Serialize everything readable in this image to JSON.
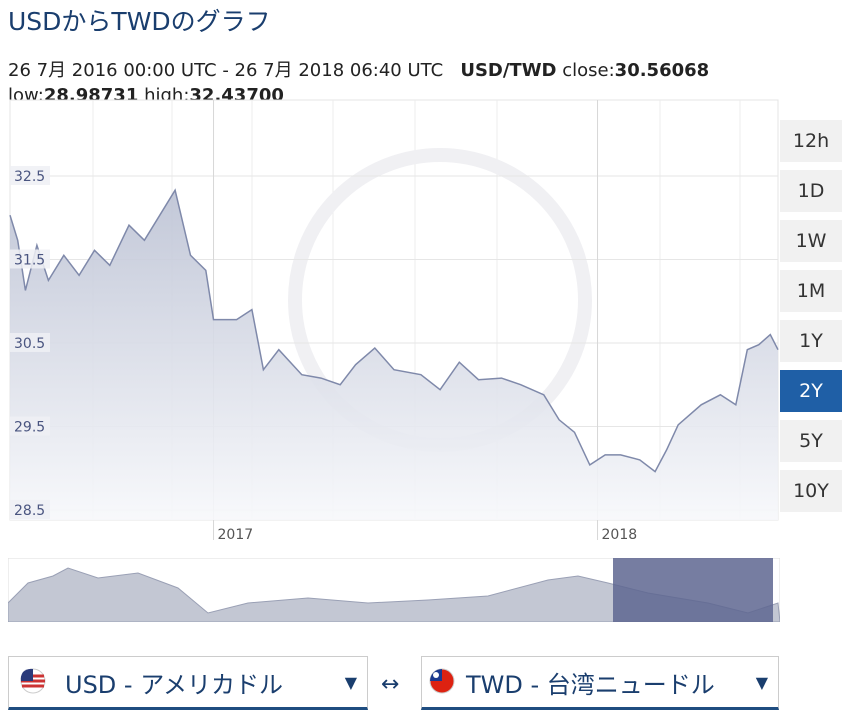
{
  "ui": {
    "title": "USDからTWDのグラフ",
    "range": "26 7月 2016 00:00 UTC - 26 7月 2018 06:40 UTC",
    "pair": "USD/TWD",
    "close_label": "close:",
    "close": "30.56068",
    "low_label": "low:",
    "low": "28.98731",
    "high_label": "high:",
    "high": "32.43700",
    "buttons": [
      "12h",
      "1D",
      "1W",
      "1M",
      "1Y",
      "2Y",
      "5Y",
      "10Y"
    ],
    "active": "2Y",
    "from": "USD - アメリカドル",
    "swap": "↔",
    "to": "TWD - 台湾ニュードル",
    "arrow": "▼"
  },
  "chart_data": {
    "type": "area",
    "color": "#7f89aa",
    "x": [
      2016.47,
      2016.49,
      2016.51,
      2016.54,
      2016.57,
      2016.61,
      2016.65,
      2016.69,
      2016.73,
      2016.78,
      2016.82,
      2016.86,
      2016.9,
      2016.94,
      2016.98,
      2017.0,
      2017.06,
      2017.1,
      2017.13,
      2017.17,
      2017.23,
      2017.28,
      2017.33,
      2017.37,
      2017.42,
      2017.47,
      2017.54,
      2017.59,
      2017.64,
      2017.69,
      2017.75,
      2017.8,
      2017.86,
      2017.9,
      2017.94,
      2017.98,
      2018.02,
      2018.06,
      2018.11,
      2018.15,
      2018.18,
      2018.21,
      2018.27,
      2018.32,
      2018.36,
      2018.39,
      2018.42,
      2018.45,
      2018.47
    ],
    "values": [
      32.03,
      31.73,
      31.13,
      31.67,
      31.25,
      31.55,
      31.31,
      31.61,
      31.43,
      31.91,
      31.73,
      32.03,
      32.33,
      31.55,
      31.37,
      30.78,
      30.78,
      30.9,
      30.18,
      30.42,
      30.12,
      30.08,
      30.0,
      30.24,
      30.44,
      30.18,
      30.12,
      29.94,
      30.27,
      30.06,
      30.08,
      30.0,
      29.88,
      29.58,
      29.43,
      29.04,
      29.16,
      29.16,
      29.1,
      28.96,
      29.22,
      29.52,
      29.76,
      29.88,
      29.76,
      30.42,
      30.48,
      30.6,
      30.42
    ],
    "xlim": [
      2016.47,
      2018.47
    ],
    "xticks": [
      {
        "value": 2017,
        "label": "2017"
      },
      {
        "value": 2018,
        "label": "2018"
      }
    ],
    "ylim": [
      28.38,
      33.41
    ],
    "yticks": [
      28.5,
      29.5,
      30.5,
      31.5,
      32.5
    ],
    "grid": true
  }
}
